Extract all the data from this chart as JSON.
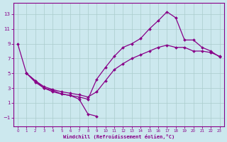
{
  "bg_color": "#cce8ee",
  "grid_color": "#aacccc",
  "line_color": "#880088",
  "xlabel": "Windchill (Refroidissement éolien,°C)",
  "xlim": [
    -0.5,
    23.5
  ],
  "ylim": [
    -2.2,
    14.5
  ],
  "xticks": [
    0,
    1,
    2,
    3,
    4,
    5,
    6,
    7,
    8,
    9,
    10,
    11,
    12,
    13,
    14,
    15,
    16,
    17,
    18,
    19,
    20,
    21,
    22,
    23
  ],
  "yticks": [
    -1,
    1,
    3,
    5,
    7,
    9,
    11,
    13
  ],
  "line1_x": [
    0,
    1,
    2,
    3,
    4,
    5,
    6,
    7,
    8,
    9
  ],
  "line1_y": [
    9.0,
    5.0,
    4.0,
    3.0,
    2.7,
    2.2,
    2.0,
    1.5,
    -0.5,
    -0.8
  ],
  "line2_x": [
    1,
    2,
    3,
    4,
    5,
    6,
    7,
    8,
    9,
    10,
    11,
    12,
    13,
    14,
    15,
    16,
    17,
    18,
    19,
    20,
    21,
    22,
    23
  ],
  "line2_y": [
    5.0,
    4.0,
    3.2,
    2.8,
    2.5,
    2.3,
    2.1,
    1.8,
    2.5,
    4.0,
    5.5,
    6.3,
    7.0,
    7.5,
    8.0,
    8.5,
    8.8,
    8.5,
    8.5,
    8.0,
    8.0,
    7.8,
    7.3
  ],
  "line3_x": [
    1,
    2,
    3,
    4,
    5,
    6,
    7,
    8,
    9,
    10,
    11,
    12,
    13,
    14,
    15,
    16,
    17,
    18,
    19,
    20,
    21,
    22,
    23
  ],
  "line3_y": [
    5.0,
    3.8,
    3.0,
    2.5,
    2.2,
    2.0,
    1.8,
    1.5,
    4.2,
    5.8,
    7.3,
    8.5,
    9.0,
    9.7,
    11.0,
    12.1,
    13.3,
    12.5,
    9.5,
    9.5,
    8.5,
    8.0,
    7.2
  ]
}
